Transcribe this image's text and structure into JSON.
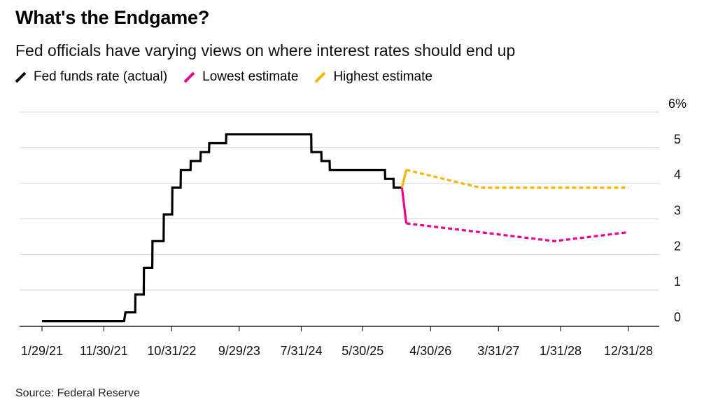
{
  "title": "What's the Endgame?",
  "subtitle": "Fed officials have varying views on where interest rates should end up",
  "source": "Source: Federal Reserve",
  "legend": [
    {
      "label": "Fed funds rate (actual)",
      "color": "#000000"
    },
    {
      "label": "Lowest estimate",
      "color": "#ec008c"
    },
    {
      "label": "Highest estimate",
      "color": "#f5b400"
    }
  ],
  "chart_data": {
    "type": "line",
    "title": "What's the Endgame?",
    "subtitle": "Fed officials have varying views on where interest rates should end up",
    "xlabel": "",
    "ylabel": "",
    "x_range": [
      "2021-01-29",
      "2028-12-31"
    ],
    "ylim": [
      0,
      6
    ],
    "y_ticks": [
      0,
      1,
      2,
      3,
      4,
      5,
      6
    ],
    "y_tick_labels": [
      "0",
      "1",
      "2",
      "3",
      "4",
      "5",
      "6%"
    ],
    "x_ticks": [
      "2021-01-29",
      "2021-11-30",
      "2022-10-31",
      "2023-09-29",
      "2024-07-31",
      "2025-05-30",
      "2026-04-30",
      "2027-03-31",
      "2028-01-31",
      "2028-12-31"
    ],
    "x_tick_labels": [
      "1/29/21",
      "11/30/21",
      "10/31/22",
      "9/29/23",
      "7/31/24",
      "5/30/25",
      "4/30/26",
      "3/31/27",
      "1/31/28",
      "12/31/28"
    ],
    "grid": true,
    "y_axis_side": "right",
    "legend_position": "top-left",
    "series": [
      {
        "name": "Fed funds rate (actual)",
        "color": "#000000",
        "style": "solid",
        "points": [
          [
            "2021-01-29",
            0.125
          ],
          [
            "2022-03-10",
            0.125
          ],
          [
            "2022-03-17",
            0.375
          ],
          [
            "2022-05-04",
            0.375
          ],
          [
            "2022-05-05",
            0.875
          ],
          [
            "2022-06-15",
            0.875
          ],
          [
            "2022-06-16",
            1.625
          ],
          [
            "2022-07-27",
            1.625
          ],
          [
            "2022-07-28",
            2.375
          ],
          [
            "2022-09-21",
            2.375
          ],
          [
            "2022-09-22",
            3.125
          ],
          [
            "2022-11-02",
            3.125
          ],
          [
            "2022-11-03",
            3.875
          ],
          [
            "2022-12-14",
            3.875
          ],
          [
            "2022-12-15",
            4.375
          ],
          [
            "2023-02-01",
            4.375
          ],
          [
            "2023-02-02",
            4.625
          ],
          [
            "2023-03-22",
            4.625
          ],
          [
            "2023-03-23",
            4.875
          ],
          [
            "2023-05-03",
            4.875
          ],
          [
            "2023-05-04",
            5.125
          ],
          [
            "2023-07-26",
            5.125
          ],
          [
            "2023-07-27",
            5.375
          ],
          [
            "2024-09-18",
            5.375
          ],
          [
            "2024-09-19",
            4.875
          ],
          [
            "2024-11-07",
            4.875
          ],
          [
            "2024-11-08",
            4.625
          ],
          [
            "2024-12-18",
            4.625
          ],
          [
            "2024-12-19",
            4.375
          ],
          [
            "2025-09-17",
            4.375
          ],
          [
            "2025-09-18",
            4.125
          ],
          [
            "2025-10-29",
            4.125
          ],
          [
            "2025-10-30",
            3.875
          ],
          [
            "2025-12-10",
            3.875
          ]
        ]
      },
      {
        "name": "Lowest estimate",
        "color": "#ec008c",
        "style": "dotted",
        "points": [
          [
            "2025-12-10",
            3.875
          ],
          [
            "2025-12-31",
            2.875
          ],
          [
            "2026-12-31",
            2.625
          ],
          [
            "2027-12-31",
            2.375
          ],
          [
            "2028-12-31",
            2.625
          ]
        ]
      },
      {
        "name": "Highest estimate",
        "color": "#f5b400",
        "style": "dotted",
        "points": [
          [
            "2025-12-10",
            3.875
          ],
          [
            "2025-12-31",
            4.375
          ],
          [
            "2026-12-31",
            3.875
          ],
          [
            "2027-12-31",
            3.875
          ],
          [
            "2028-12-31",
            3.875
          ]
        ]
      }
    ]
  }
}
